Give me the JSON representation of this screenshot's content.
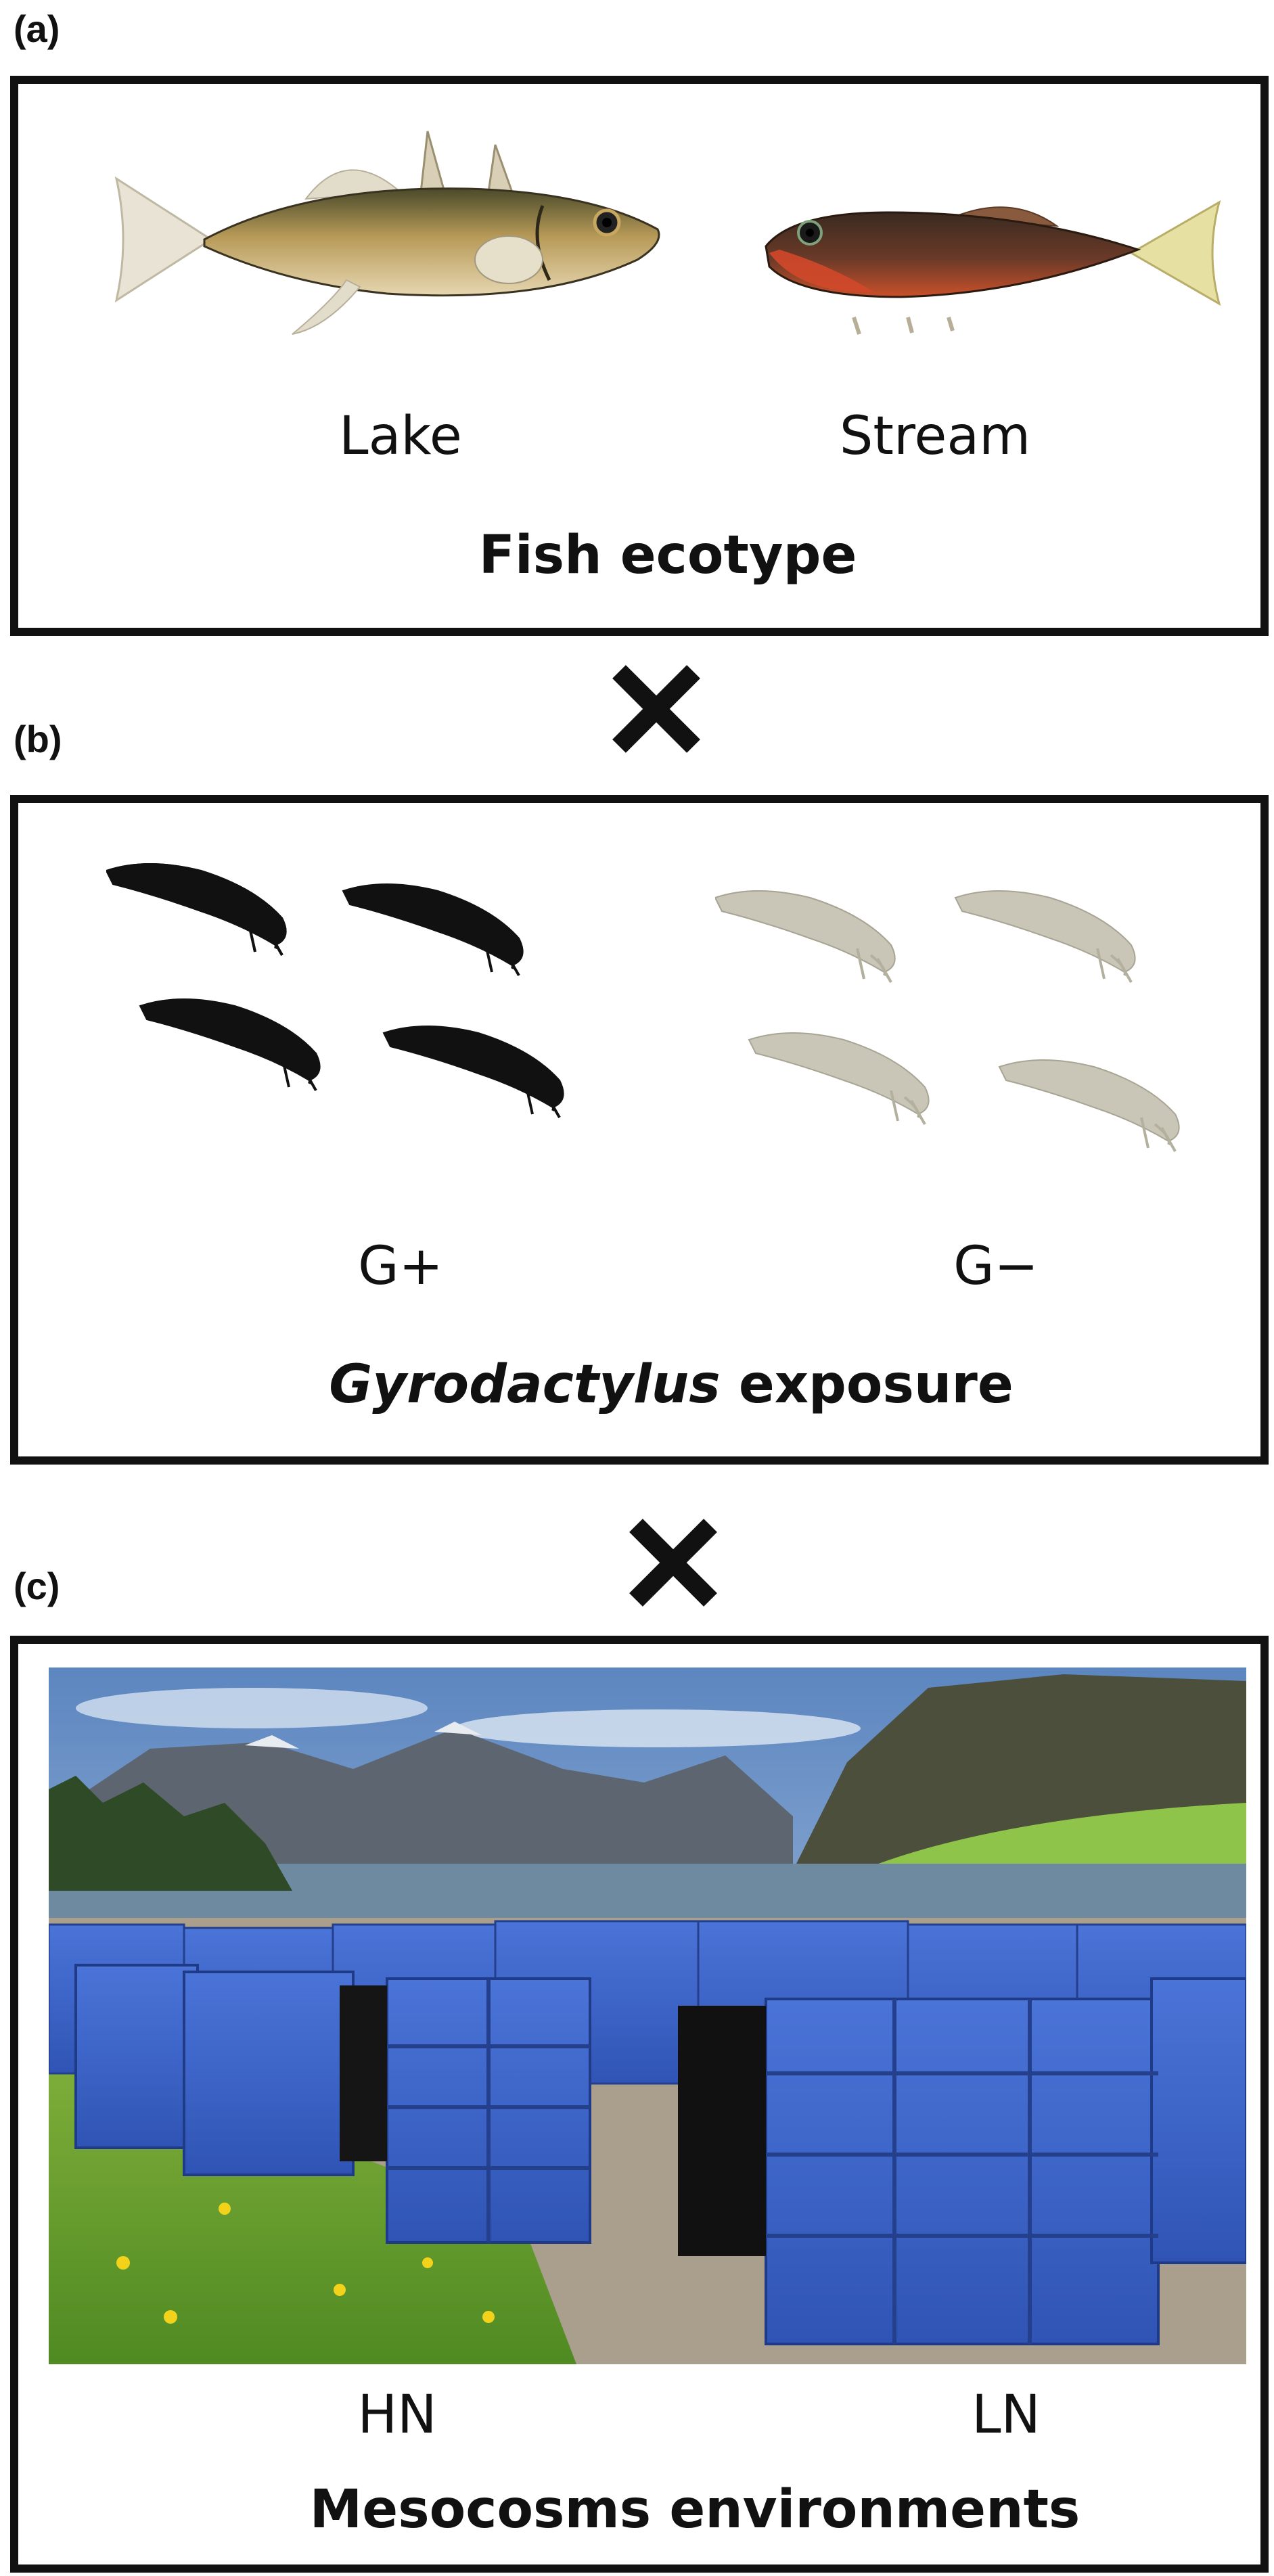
{
  "panels": {
    "a": {
      "letter": "(a)",
      "left_label": "Lake",
      "right_label": "Stream",
      "title": "Fish ecotype"
    },
    "b": {
      "letter": "(b)",
      "left_label": "G+",
      "right_label": "G−",
      "title_italic": "Gyrodactylus",
      "title_rest": " exposure"
    },
    "c": {
      "letter": "(c)",
      "left_label": "HN",
      "right_label": "LN",
      "title": "Mesocosms environments"
    }
  },
  "icons": {
    "cross": "multiply-cross-icon",
    "lake_fish": "stickleback-lake-fish-icon",
    "stream_fish": "stickleback-stream-fish-icon",
    "parasite": "gyrodactylus-parasite-icon"
  },
  "colors": {
    "border": "#111111",
    "parasite_dark": "#111111",
    "parasite_light": "#c9c6b8",
    "mesocosm_blue": "#3e63c9"
  }
}
